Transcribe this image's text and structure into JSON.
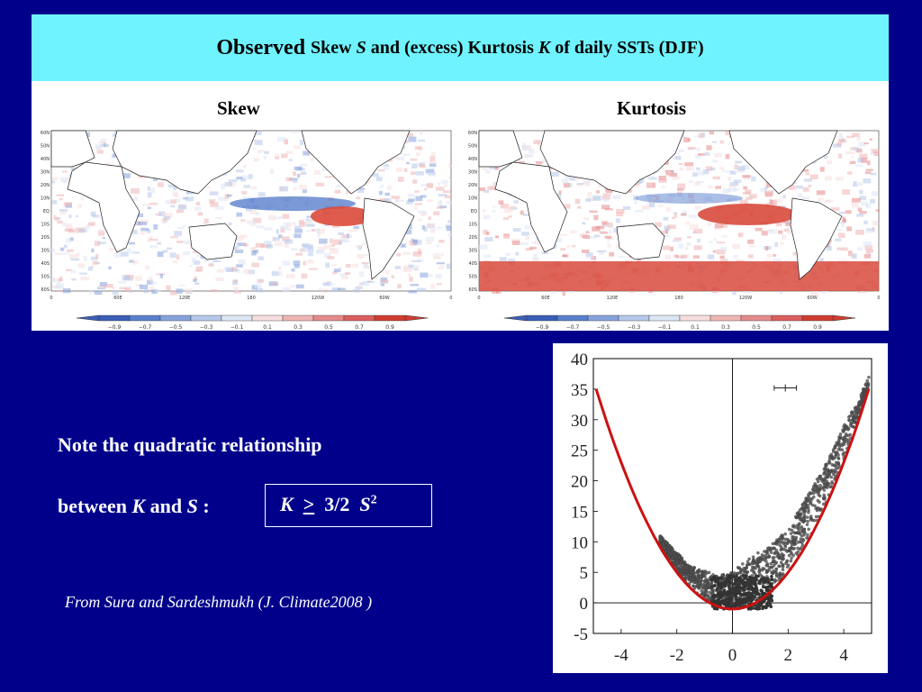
{
  "slide": {
    "title_bold": "Observed",
    "title_parts": [
      "Skew",
      "S",
      "and (excess) Kurtosis",
      "K",
      "of daily SSTs (DJF)"
    ],
    "note_line1": "Note the quadratic relationship",
    "note_line2": [
      "between",
      "K",
      "and",
      "S",
      ":"
    ],
    "formula": {
      "lhs": "K",
      "op": ">",
      "coef": "3/2",
      "var": "S",
      "exp": "2"
    },
    "citation": "From Sura and Sardeshmukh (J. Climate2008 )"
  },
  "maps": [
    {
      "title": "Skew"
    },
    {
      "title": "Kurtosis"
    }
  ],
  "map_axes": {
    "lat_ticks": [
      "60N",
      "50N",
      "40N",
      "30N",
      "20N",
      "10N",
      "EQ",
      "10S",
      "20S",
      "30S",
      "40S",
      "50S",
      "60S"
    ],
    "lon_ticks": [
      "0",
      "60E",
      "120E",
      "180",
      "120W",
      "60W",
      "0"
    ]
  },
  "colorbar": {
    "labels": [
      "-0.9",
      "-0.7",
      "-0.5",
      "-0.3",
      "-0.1",
      "0.1",
      "0.3",
      "0.5",
      "0.7",
      "0.9"
    ],
    "colors": [
      "#3b5fb8",
      "#5a7fcc",
      "#86a3dc",
      "#b6c8ea",
      "#dde6f5",
      "#f7dede",
      "#efb4b4",
      "#e58a8a",
      "#dc5e5e",
      "#d03c30"
    ]
  },
  "chart_data": {
    "type": "scatter",
    "title": "",
    "xlabel": "",
    "ylabel": "",
    "xlim": [
      -5,
      5
    ],
    "ylim": [
      -5,
      40
    ],
    "xticks": [
      -4,
      -2,
      0,
      2,
      4
    ],
    "yticks": [
      40,
      35,
      30,
      25,
      20,
      15,
      10,
      5,
      0,
      -5
    ],
    "curve": {
      "color": "#cc1111",
      "formula": "K = 1.5*S^2 - 1",
      "x_range": [
        -4.9,
        4.9
      ]
    },
    "error_bar": {
      "x": 1.9,
      "y": 35.2,
      "x_err": 0.4
    },
    "points_color": "#444444",
    "points_envelope": [
      {
        "x": -2.6,
        "y": 11.0
      },
      {
        "x": -1.5,
        "y": 6.0
      },
      {
        "x": -0.5,
        "y": 4.5
      },
      {
        "x": 0.0,
        "y": 5.0
      },
      {
        "x": 0.5,
        "y": 7.0
      },
      {
        "x": 1.0,
        "y": 8.5
      },
      {
        "x": 1.5,
        "y": 10.0
      },
      {
        "x": 2.0,
        "y": 12.0
      },
      {
        "x": 2.5,
        "y": 16.0
      },
      {
        "x": 3.0,
        "y": 20.0
      },
      {
        "x": 3.5,
        "y": 24.0
      },
      {
        "x": 4.0,
        "y": 29.0
      },
      {
        "x": 4.5,
        "y": 33.0
      },
      {
        "x": 4.9,
        "y": 37.0
      }
    ]
  }
}
